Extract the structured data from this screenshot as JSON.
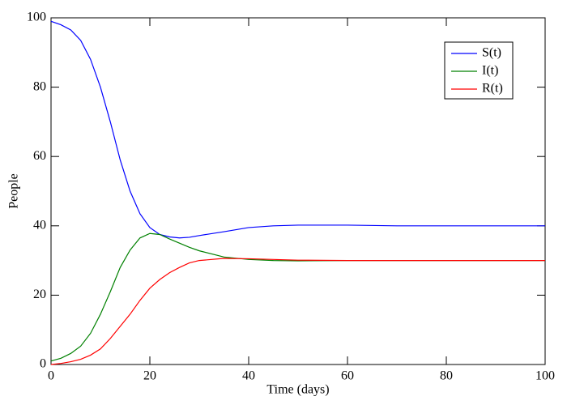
{
  "chart_data": {
    "type": "line",
    "x_label": "Time (days)",
    "y_label": "People",
    "x": [
      0,
      2,
      4,
      6,
      8,
      10,
      12,
      14,
      16,
      18,
      20,
      22,
      24,
      26,
      28,
      30,
      35,
      40,
      45,
      50,
      60,
      70,
      80,
      90,
      100
    ],
    "series": [
      {
        "name": "S(t)",
        "color": "#0000ff",
        "values": [
          99,
          98,
          96.5,
          93.5,
          88,
          80,
          70,
          59,
          50,
          43.5,
          39.5,
          37.5,
          36.8,
          36.5,
          36.7,
          37.2,
          38.3,
          39.5,
          40,
          40.2,
          40.2,
          40,
          40,
          40,
          40
        ]
      },
      {
        "name": "I(t)",
        "color": "#008000",
        "values": [
          1,
          1.8,
          3.2,
          5.3,
          9,
          14.5,
          21,
          28,
          33,
          36.5,
          37.8,
          37.5,
          36.2,
          35,
          33.8,
          32.8,
          31,
          30.3,
          30,
          29.9,
          30,
          30,
          30,
          30,
          30
        ]
      },
      {
        "name": "R(t)",
        "color": "#ff0000",
        "values": [
          0,
          0.3,
          0.8,
          1.5,
          2.7,
          4.5,
          7.5,
          11,
          14.5,
          18.5,
          22,
          24.5,
          26.5,
          28,
          29.3,
          30,
          30.6,
          30.5,
          30.3,
          30.1,
          30,
          30,
          30,
          30,
          30
        ]
      }
    ],
    "xlim": [
      0,
      100
    ],
    "xticks": [
      0,
      20,
      40,
      60,
      80,
      100
    ],
    "ylim": [
      0,
      100
    ],
    "yticks": [
      0,
      20,
      40,
      60,
      80,
      100
    ],
    "grid": false,
    "legend_position": "upper right"
  }
}
